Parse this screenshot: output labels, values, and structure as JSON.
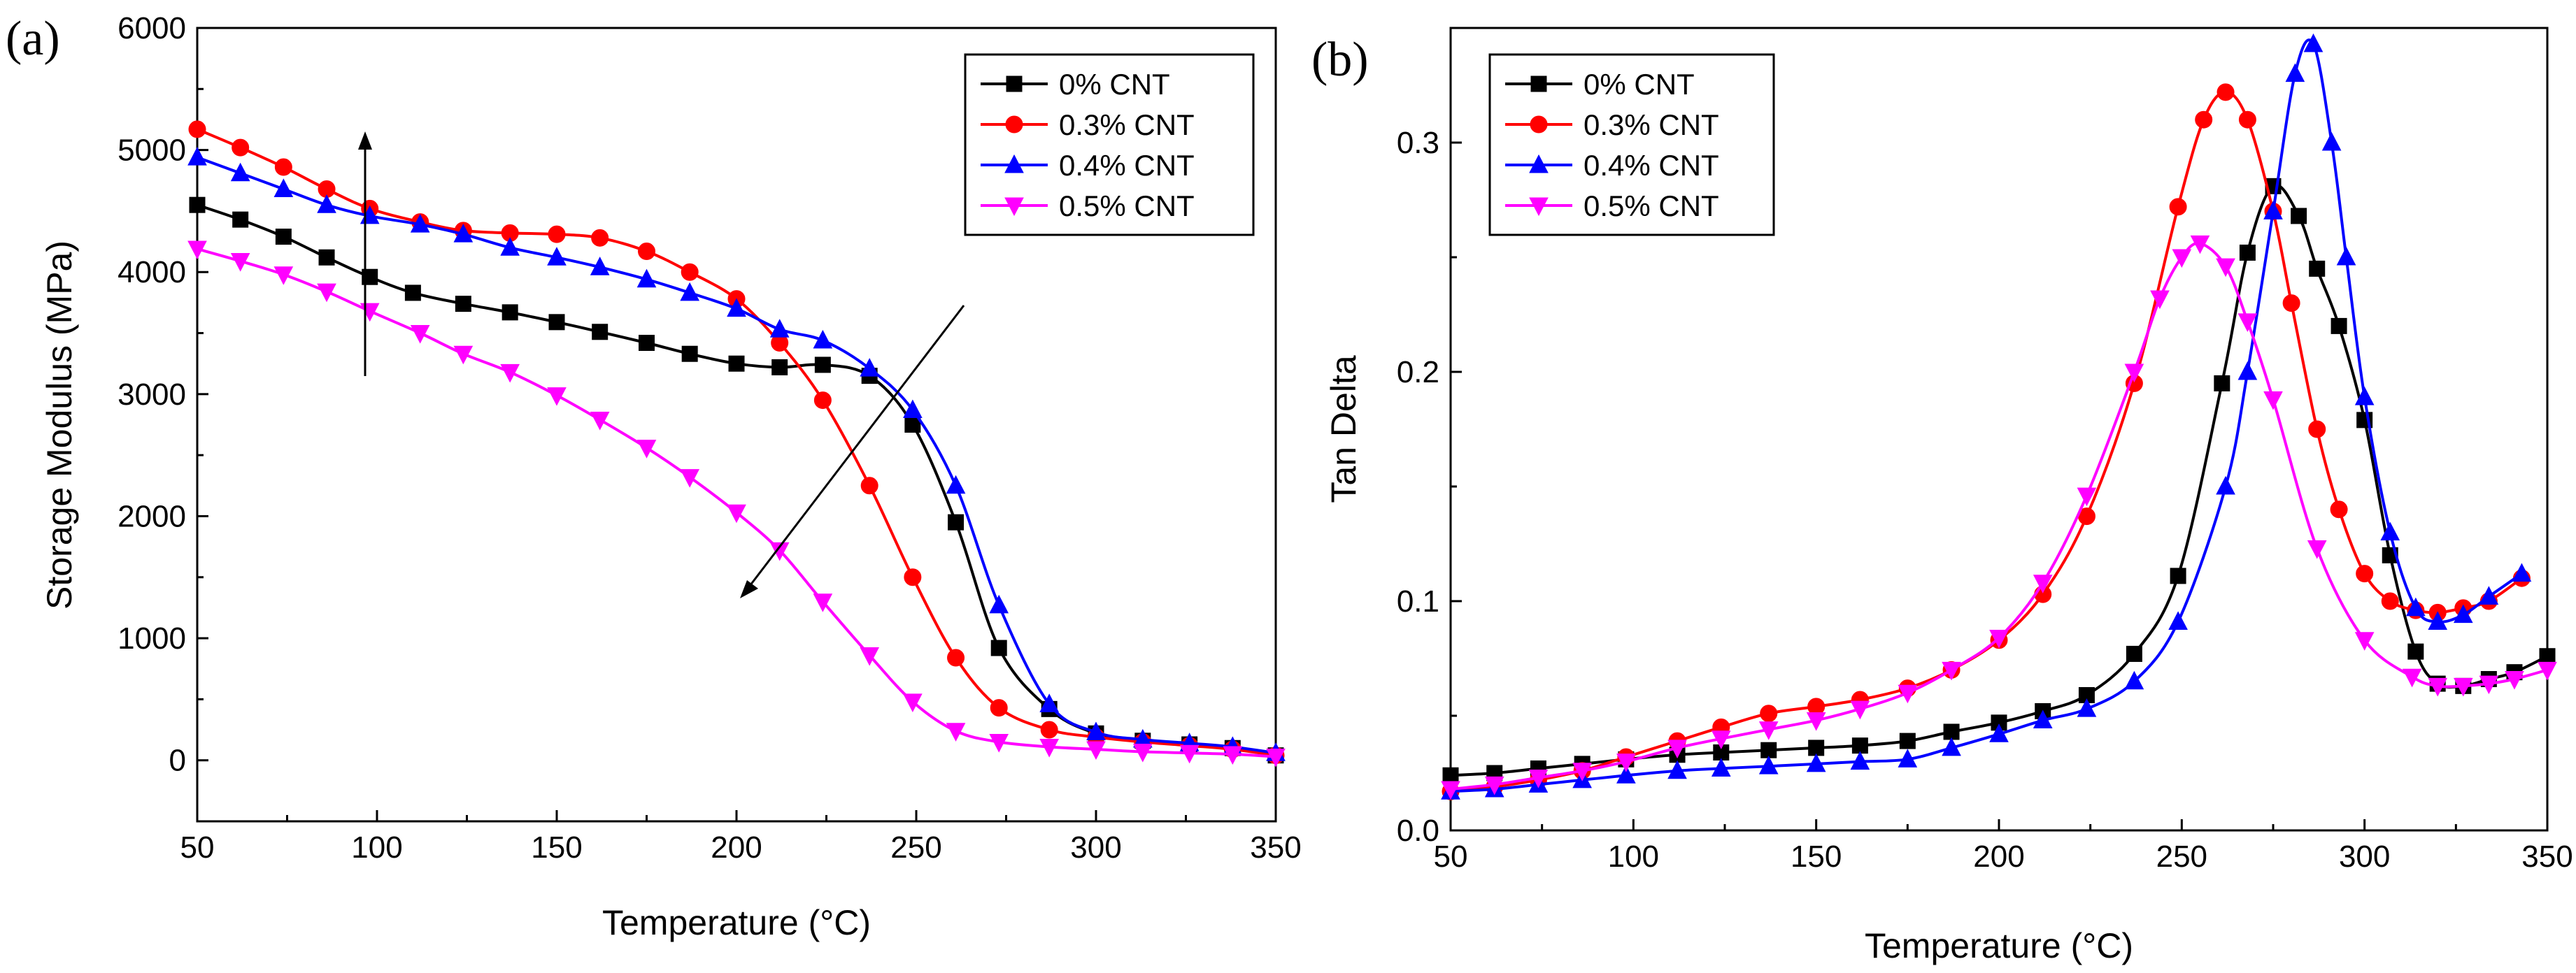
{
  "chart_data": [
    {
      "type": "line",
      "panel_label": "(a)",
      "xlabel": "Temperature (°C)",
      "ylabel": "Storage Modulus (MPa)",
      "xlim": [
        50,
        350
      ],
      "ylim": [
        -500,
        6000
      ],
      "xticks": [
        50,
        100,
        150,
        200,
        250,
        300,
        350
      ],
      "yticks": [
        0,
        1000,
        2000,
        3000,
        4000,
        5000,
        6000
      ],
      "legend_position": "top-right",
      "series": [
        {
          "name": "0% CNT",
          "color": "#000000",
          "marker": "square",
          "x": [
            50,
            62,
            74,
            86,
            98,
            110,
            124,
            137,
            150,
            162,
            175,
            187,
            200,
            212,
            224,
            237,
            249,
            261,
            273,
            287,
            300,
            313,
            326,
            338,
            350
          ],
          "y": [
            4550,
            4430,
            4290,
            4120,
            3960,
            3830,
            3740,
            3670,
            3590,
            3510,
            3420,
            3330,
            3250,
            3220,
            3240,
            3150,
            2750,
            1950,
            920,
            420,
            220,
            160,
            130,
            100,
            40
          ]
        },
        {
          "name": "0.3% CNT",
          "color": "#ff0000",
          "marker": "circle",
          "x": [
            50,
            62,
            74,
            86,
            98,
            112,
            124,
            137,
            150,
            162,
            175,
            187,
            200,
            212,
            224,
            237,
            249,
            261,
            273,
            287,
            300,
            313,
            326,
            338,
            350
          ],
          "y": [
            5170,
            5020,
            4860,
            4680,
            4520,
            4410,
            4340,
            4320,
            4310,
            4280,
            4170,
            4000,
            3780,
            3420,
            2950,
            2250,
            1500,
            840,
            430,
            250,
            190,
            150,
            120,
            90,
            40
          ]
        },
        {
          "name": "0.4% CNT",
          "color": "#0000ff",
          "marker": "triangle-up",
          "x": [
            50,
            62,
            74,
            86,
            98,
            112,
            124,
            137,
            150,
            162,
            175,
            187,
            200,
            212,
            224,
            237,
            249,
            261,
            273,
            287,
            300,
            313,
            326,
            338,
            350
          ],
          "y": [
            4940,
            4810,
            4680,
            4550,
            4460,
            4390,
            4310,
            4200,
            4120,
            4040,
            3940,
            3830,
            3700,
            3530,
            3440,
            3210,
            2870,
            2250,
            1270,
            460,
            230,
            170,
            140,
            110,
            60
          ]
        },
        {
          "name": "0.5% CNT",
          "color": "#ff00ff",
          "marker": "triangle-down",
          "x": [
            50,
            62,
            74,
            86,
            98,
            112,
            124,
            137,
            150,
            162,
            175,
            187,
            200,
            212,
            224,
            237,
            249,
            261,
            273,
            287,
            300,
            313,
            326,
            338,
            350
          ],
          "y": [
            4190,
            4090,
            3980,
            3840,
            3680,
            3500,
            3330,
            3180,
            2990,
            2790,
            2560,
            2320,
            2030,
            1720,
            1300,
            860,
            480,
            240,
            150,
            110,
            90,
            70,
            60,
            50,
            30
          ]
        }
      ]
    },
    {
      "type": "line",
      "panel_label": "(b)",
      "xlabel": "Temperature (°C)",
      "ylabel": "Tan Delta",
      "xlim": [
        50,
        350
      ],
      "ylim": [
        0.0,
        0.35
      ],
      "xticks": [
        50,
        100,
        150,
        200,
        250,
        300,
        350
      ],
      "yticks": [
        0.0,
        0.1,
        0.2,
        0.3
      ],
      "legend_position": "top-left",
      "series": [
        {
          "name": "0% CNT",
          "color": "#000000",
          "marker": "square",
          "x": [
            50,
            62,
            74,
            86,
            98,
            112,
            124,
            137,
            150,
            162,
            175,
            187,
            200,
            212,
            224,
            237,
            249,
            261,
            268,
            275,
            282,
            287,
            293,
            300,
            307,
            314,
            320,
            327,
            334,
            341,
            350
          ],
          "y": [
            0.024,
            0.025,
            0.027,
            0.029,
            0.031,
            0.033,
            0.034,
            0.035,
            0.036,
            0.037,
            0.039,
            0.043,
            0.047,
            0.052,
            0.059,
            0.077,
            0.111,
            0.195,
            0.252,
            0.281,
            0.268,
            0.245,
            0.22,
            0.179,
            0.12,
            0.078,
            0.064,
            0.063,
            0.066,
            0.069,
            0.076
          ]
        },
        {
          "name": "0.3% CNT",
          "color": "#ff0000",
          "marker": "circle",
          "x": [
            50,
            62,
            74,
            86,
            98,
            112,
            124,
            137,
            150,
            162,
            175,
            187,
            200,
            212,
            224,
            237,
            249,
            256,
            262,
            268,
            275,
            280,
            287,
            293,
            300,
            307,
            314,
            320,
            327,
            334,
            343
          ],
          "y": [
            0.017,
            0.019,
            0.022,
            0.026,
            0.032,
            0.039,
            0.045,
            0.051,
            0.054,
            0.057,
            0.062,
            0.07,
            0.083,
            0.103,
            0.137,
            0.195,
            0.272,
            0.31,
            0.322,
            0.31,
            0.27,
            0.23,
            0.175,
            0.14,
            0.112,
            0.1,
            0.096,
            0.095,
            0.097,
            0.1,
            0.11
          ]
        },
        {
          "name": "0.4% CNT",
          "color": "#0000ff",
          "marker": "triangle-up",
          "x": [
            50,
            62,
            74,
            86,
            98,
            112,
            124,
            137,
            150,
            162,
            175,
            187,
            200,
            212,
            224,
            237,
            249,
            262,
            268,
            275,
            281,
            286,
            291,
            295,
            300,
            307,
            314,
            320,
            327,
            334,
            343
          ],
          "y": [
            0.017,
            0.018,
            0.02,
            0.022,
            0.024,
            0.026,
            0.027,
            0.028,
            0.029,
            0.03,
            0.031,
            0.036,
            0.042,
            0.048,
            0.053,
            0.065,
            0.091,
            0.15,
            0.2,
            0.27,
            0.33,
            0.343,
            0.3,
            0.25,
            0.189,
            0.13,
            0.097,
            0.091,
            0.094,
            0.102,
            0.112
          ]
        },
        {
          "name": "0.5% CNT",
          "color": "#ff00ff",
          "marker": "triangle-down",
          "x": [
            50,
            62,
            74,
            86,
            98,
            112,
            124,
            137,
            150,
            162,
            175,
            187,
            200,
            212,
            224,
            237,
            244,
            250,
            255,
            262,
            268,
            275,
            287,
            300,
            313,
            320,
            327,
            334,
            341,
            350
          ],
          "y": [
            0.018,
            0.02,
            0.023,
            0.026,
            0.03,
            0.036,
            0.04,
            0.044,
            0.048,
            0.053,
            0.06,
            0.07,
            0.084,
            0.108,
            0.146,
            0.2,
            0.232,
            0.25,
            0.256,
            0.246,
            0.222,
            0.188,
            0.123,
            0.083,
            0.067,
            0.063,
            0.063,
            0.064,
            0.066,
            0.07
          ]
        }
      ]
    }
  ]
}
